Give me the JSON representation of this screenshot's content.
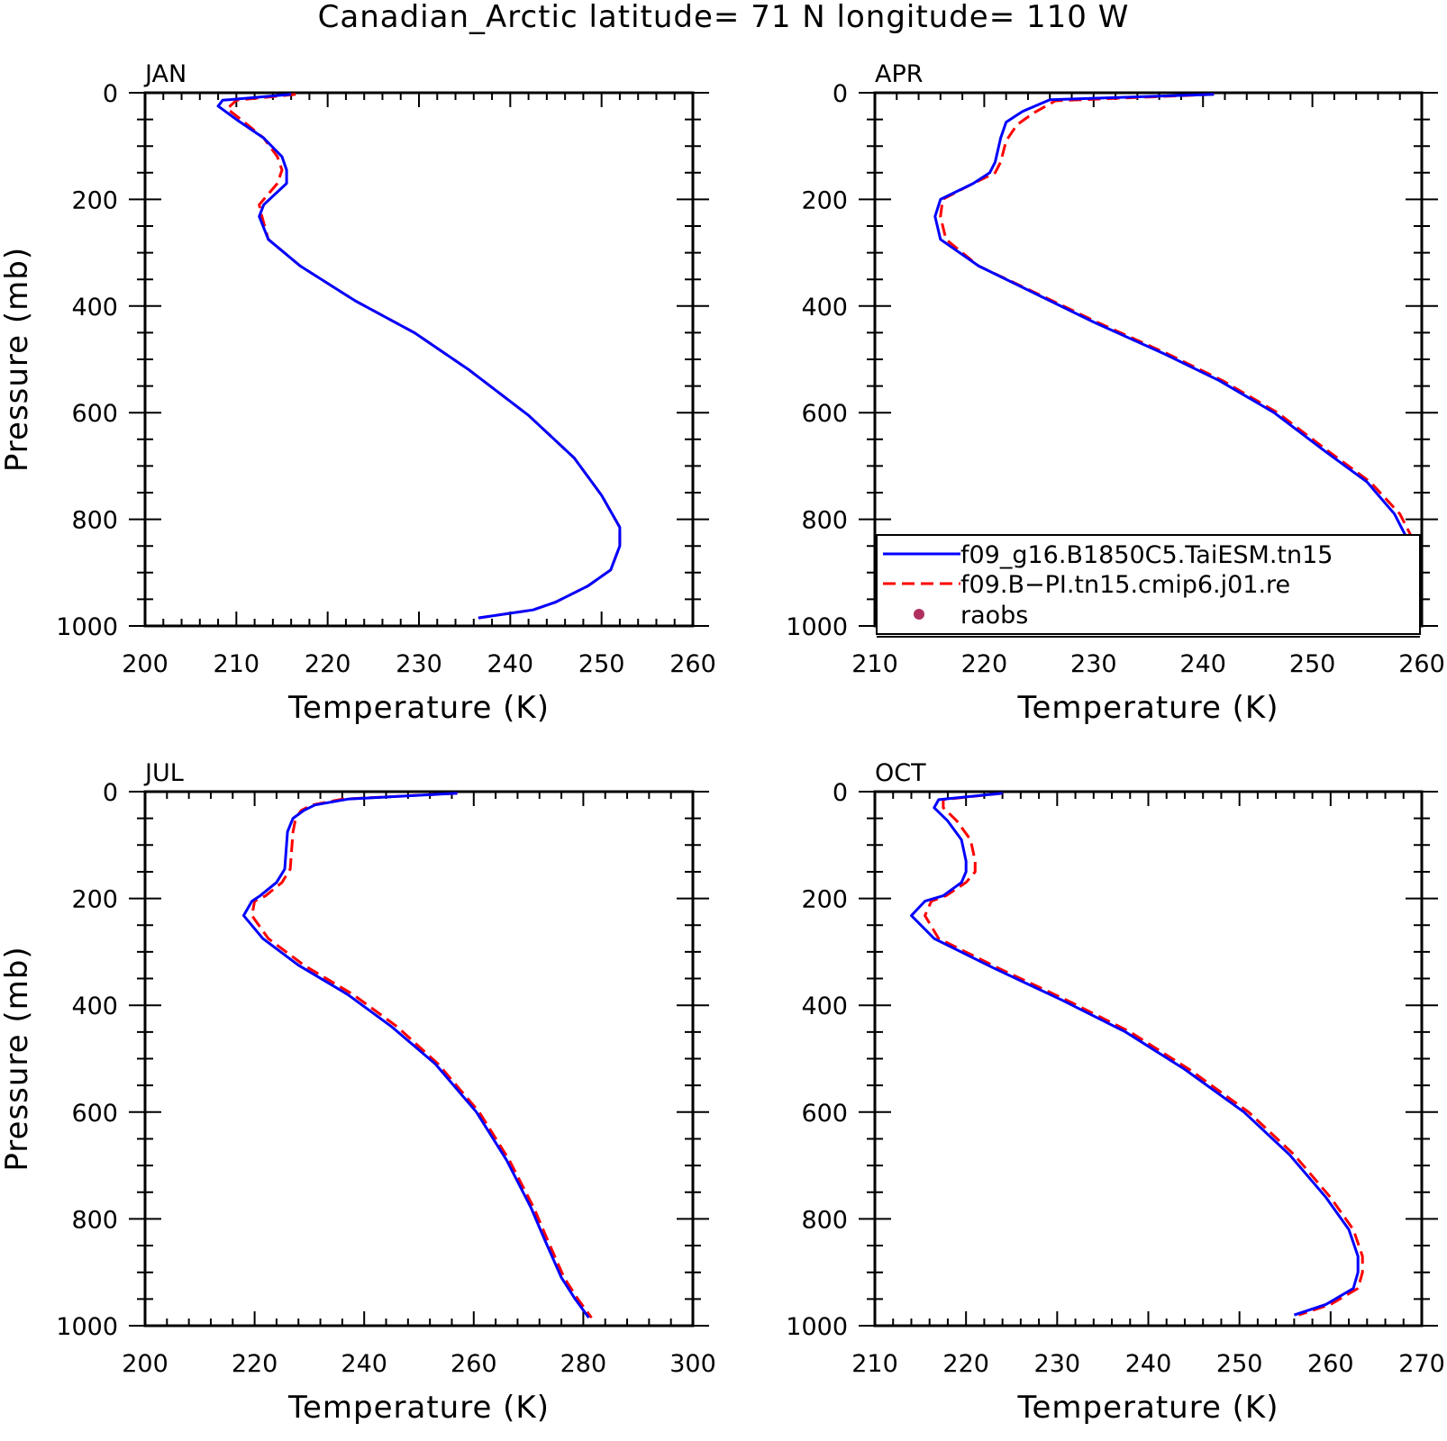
{
  "title": "Canadian_Arctic  latitude= 71 N longitude= 110 W",
  "legend": {
    "entries": [
      {
        "label": "f09_g16.B1850C5.TaiESM.tn15",
        "color": "#0000ff",
        "style": "solid"
      },
      {
        "label": "f09.B−PI.tn15.cmip6.j01.re",
        "color": "#ff0000",
        "style": "dashed"
      },
      {
        "label": "raobs",
        "color": "#b03060",
        "style": "dot"
      }
    ]
  },
  "chart_data": [
    {
      "type": "line",
      "panel": "JAN",
      "xlabel": "Temperature (K)",
      "ylabel": "Pressure (mb)",
      "xlim": [
        200,
        260
      ],
      "ylim": [
        1000,
        0
      ],
      "xticks": [
        200,
        210,
        220,
        230,
        240,
        250,
        260
      ],
      "yticks": [
        0,
        200,
        400,
        600,
        800,
        1000
      ],
      "series": [
        {
          "name": "f09_g16.B1850C5.TaiESM.tn15",
          "color": "#0000ff",
          "dash": "solid",
          "x": [
            216,
            208.5,
            208,
            210,
            213,
            215,
            215.5,
            215.5,
            213,
            212.5,
            213.5,
            217,
            223,
            229.5,
            235.5,
            242,
            247,
            250,
            252,
            252,
            251,
            248.5,
            245,
            242.5,
            236.5
          ],
          "y": [
            3,
            14,
            25,
            50,
            85,
            120,
            145,
            170,
            210,
            232,
            275,
            325,
            390,
            450,
            520,
            605,
            685,
            755,
            815,
            850,
            895,
            925,
            955,
            970,
            985
          ]
        },
        {
          "name": "f09.B−PI.tn15.cmip6.j01.re",
          "color": "#ff0000",
          "dash": "dashed",
          "x": [
            216.5,
            210,
            209,
            210.5,
            213,
            214.5,
            215,
            214.5,
            212.5,
            212.8,
            213.5,
            217,
            223,
            229.5,
            235.5,
            242,
            247,
            250,
            252,
            252,
            251,
            248.5,
            245,
            242.5,
            236.5
          ],
          "y": [
            3,
            14,
            30,
            50,
            85,
            120,
            145,
            170,
            210,
            232,
            275,
            325,
            390,
            450,
            520,
            605,
            685,
            755,
            815,
            850,
            895,
            925,
            955,
            970,
            985
          ]
        }
      ]
    },
    {
      "type": "line",
      "panel": "APR",
      "xlabel": "Temperature (K)",
      "ylabel": "",
      "xlim": [
        210,
        260
      ],
      "ylim": [
        1000,
        0
      ],
      "xticks": [
        210,
        220,
        230,
        240,
        250,
        260
      ],
      "yticks": [
        0,
        200,
        400,
        600,
        800,
        1000
      ],
      "series": [
        {
          "name": "f09_g16.B1850C5.TaiESM.tn15",
          "color": "#0000ff",
          "dash": "solid",
          "x": [
            241,
            226,
            223.5,
            222,
            221.5,
            221,
            220.5,
            219,
            216,
            215.5,
            216,
            219.5,
            225,
            230,
            236.5,
            241.5,
            246.5,
            251,
            255,
            257.5,
            259,
            259.5,
            258.5,
            255.5,
            251
          ],
          "y": [
            3,
            13,
            35,
            55,
            85,
            130,
            150,
            170,
            200,
            232,
            275,
            325,
            380,
            430,
            490,
            540,
            600,
            670,
            730,
            790,
            850,
            910,
            940,
            960,
            990
          ]
        },
        {
          "name": "f09.B−PI.tn15.cmip6.j01.re",
          "color": "#ff0000",
          "dash": "dashed",
          "x": [
            241,
            226.5,
            224.5,
            223,
            222,
            221.5,
            221,
            219,
            216.2,
            216,
            216.5,
            219.5,
            225.2,
            230.3,
            236.8,
            241.8,
            246.8,
            251.3,
            255.3,
            258,
            259.5,
            259.8,
            258.8,
            255.8,
            251.3
          ],
          "y": [
            3,
            15,
            38,
            60,
            90,
            130,
            150,
            170,
            200,
            232,
            275,
            325,
            380,
            430,
            490,
            540,
            600,
            670,
            730,
            790,
            850,
            910,
            940,
            960,
            990
          ]
        }
      ]
    },
    {
      "type": "line",
      "panel": "JUL",
      "xlabel": "Temperature (K)",
      "ylabel": "Pressure (mb)",
      "xlim": [
        200,
        300
      ],
      "ylim": [
        1000,
        0
      ],
      "xticks": [
        200,
        220,
        240,
        260,
        280,
        300
      ],
      "yticks": [
        0,
        200,
        400,
        600,
        800,
        1000
      ],
      "series": [
        {
          "name": "f09_g16.B1850C5.TaiESM.tn15",
          "color": "#0000ff",
          "dash": "solid",
          "x": [
            257,
            237,
            231,
            229,
            227,
            226,
            225.5,
            224,
            221,
            219.5,
            218,
            221.5,
            228,
            237,
            245,
            253,
            260.5,
            266,
            270.5,
            273,
            276,
            278.5,
            281
          ],
          "y": [
            3,
            14,
            25,
            35,
            50,
            75,
            145,
            170,
            195,
            205,
            232,
            275,
            325,
            380,
            440,
            510,
            600,
            690,
            780,
            840,
            910,
            950,
            985
          ]
        },
        {
          "name": "f09.B−PI.tn15.cmip6.j01.re",
          "color": "#ff0000",
          "dash": "dashed",
          "x": [
            257,
            236,
            230.5,
            228.5,
            227.5,
            227,
            226.5,
            225,
            222,
            220,
            219.5,
            222.5,
            229,
            238,
            246,
            253.5,
            261,
            266.5,
            271,
            273.5,
            276.5,
            279,
            281.5
          ],
          "y": [
            3,
            14,
            25,
            35,
            50,
            75,
            145,
            170,
            195,
            205,
            232,
            275,
            325,
            380,
            440,
            510,
            600,
            690,
            780,
            840,
            910,
            950,
            985
          ]
        }
      ]
    },
    {
      "type": "line",
      "panel": "OCT",
      "xlabel": "Temperature (K)",
      "ylabel": "",
      "xlim": [
        210,
        270
      ],
      "ylim": [
        1000,
        0
      ],
      "xticks": [
        210,
        220,
        230,
        240,
        250,
        260,
        270
      ],
      "yticks": [
        0,
        200,
        400,
        600,
        800,
        1000
      ],
      "series": [
        {
          "name": "f09_g16.B1850C5.TaiESM.tn15",
          "color": "#0000ff",
          "dash": "solid",
          "x": [
            224,
            217,
            216.5,
            218,
            219.5,
            220,
            220,
            219.5,
            217.5,
            215.5,
            214,
            216.5,
            223,
            230.5,
            237.5,
            244,
            250.5,
            255.5,
            259.5,
            262,
            263,
            263,
            262.5,
            259.5,
            256
          ],
          "y": [
            3,
            15,
            30,
            55,
            90,
            130,
            150,
            170,
            195,
            205,
            232,
            275,
            330,
            390,
            450,
            520,
            600,
            680,
            760,
            820,
            870,
            900,
            930,
            960,
            980
          ]
        },
        {
          "name": "f09.B−PI.tn15.cmip6.j01.re",
          "color": "#ff0000",
          "dash": "dashed",
          "x": [
            224,
            217.5,
            217.5,
            219,
            220.5,
            221,
            221,
            220,
            217.8,
            216.2,
            215.5,
            217,
            223.5,
            231,
            238,
            244.5,
            251,
            256,
            260,
            262.5,
            263.5,
            263.5,
            263,
            260,
            256.5
          ],
          "y": [
            3,
            15,
            30,
            55,
            90,
            130,
            150,
            170,
            195,
            205,
            232,
            275,
            330,
            390,
            450,
            520,
            600,
            680,
            760,
            820,
            870,
            900,
            930,
            960,
            980
          ]
        }
      ]
    }
  ]
}
